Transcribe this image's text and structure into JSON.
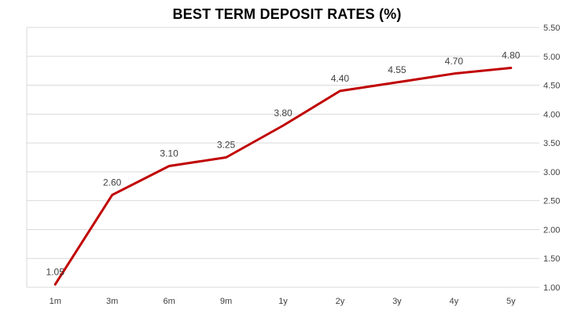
{
  "colors": {
    "line": "#c00000",
    "grid": "#d9d9d9",
    "text": "#404040"
  },
  "chart_data": {
    "type": "line",
    "title": "BEST TERM DEPOSIT RATES (%)",
    "xlabel": "",
    "ylabel": "",
    "categories": [
      "1m",
      "3m",
      "6m",
      "9m",
      "1y",
      "2y",
      "3y",
      "4y",
      "5y"
    ],
    "values": [
      1.05,
      2.6,
      3.1,
      3.25,
      3.8,
      4.4,
      4.55,
      4.7,
      4.8
    ],
    "data_labels": [
      "1.05",
      "2.60",
      "3.10",
      "3.25",
      "3.80",
      "4.40",
      "4.55",
      "4.70",
      "4.80"
    ],
    "ylim": [
      1.0,
      5.5
    ],
    "y_ticks": [
      "1.00",
      "1.50",
      "2.00",
      "2.50",
      "3.00",
      "3.50",
      "4.00",
      "4.50",
      "5.00",
      "5.50"
    ],
    "y_axis_position": "right",
    "grid": true,
    "legend": "none"
  }
}
